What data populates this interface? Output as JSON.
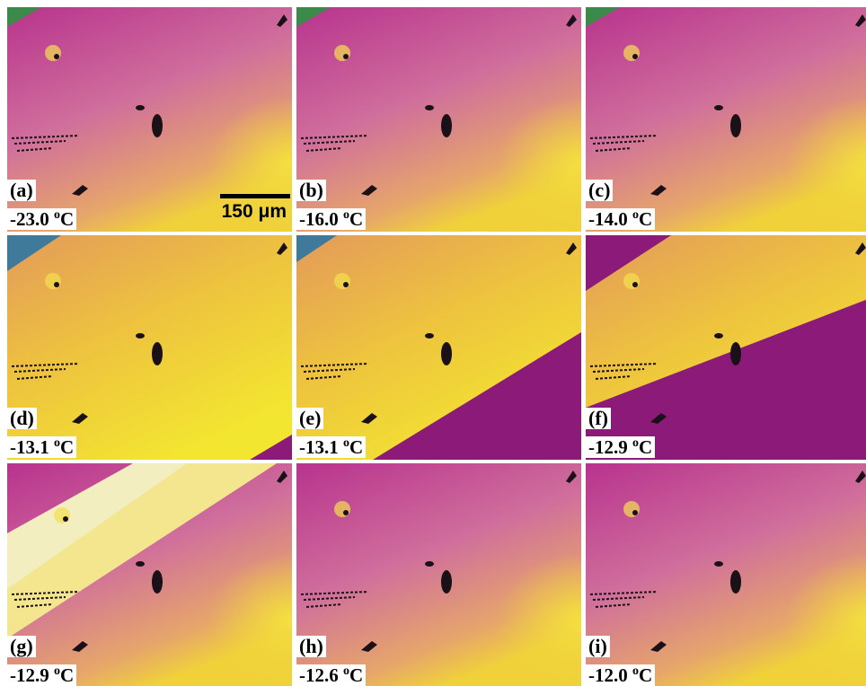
{
  "scale_bar": "150 μm",
  "panels": [
    {
      "label": "(a)",
      "temperature": "-23.0",
      "degree": "o",
      "unit": "C"
    },
    {
      "label": "(b)",
      "temperature": "-16.0",
      "degree": "o",
      "unit": "C"
    },
    {
      "label": "(c)",
      "temperature": "-14.0",
      "degree": "o",
      "unit": "C"
    },
    {
      "label": "(d)",
      "temperature": "-13.1",
      "degree": "o",
      "unit": "C"
    },
    {
      "label": "(e)",
      "temperature": "-13.1",
      "degree": "o",
      "unit": "C"
    },
    {
      "label": "(f)",
      "temperature": "-12.9",
      "degree": "o",
      "unit": "C"
    },
    {
      "label": "(g)",
      "temperature": "-12.9",
      "degree": "o",
      "unit": "C"
    },
    {
      "label": "(h)",
      "temperature": "-12.6",
      "degree": "o",
      "unit": "C"
    },
    {
      "label": "(i)",
      "temperature": "-12.0",
      "degree": "o",
      "unit": "C"
    }
  ]
}
